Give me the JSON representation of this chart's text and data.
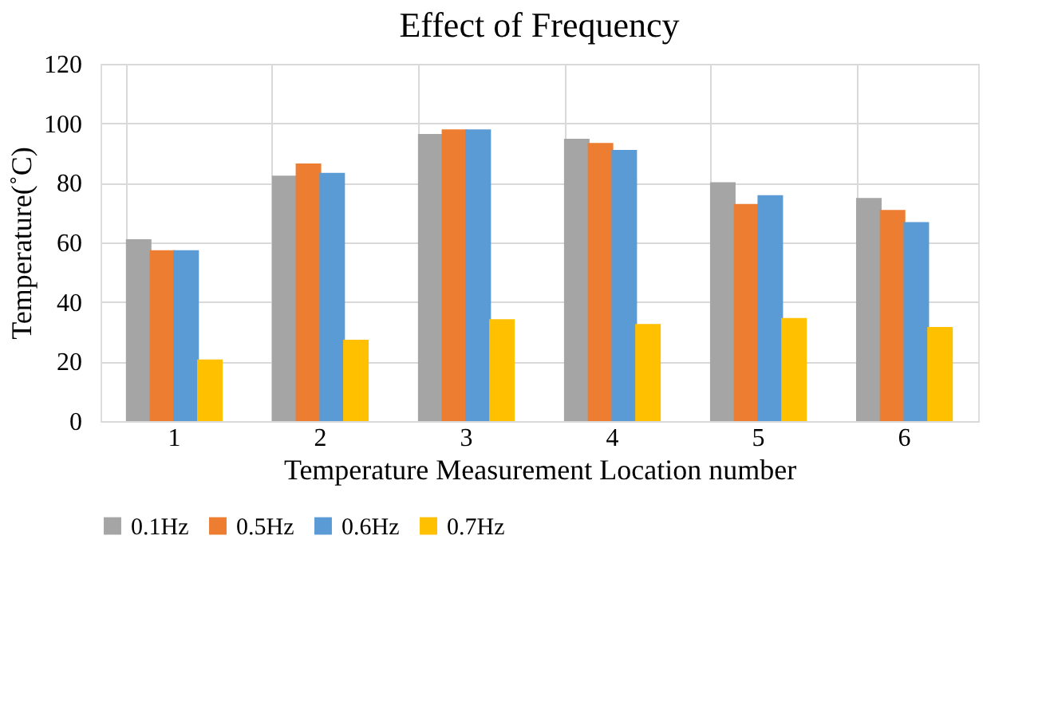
{
  "chart_data": {
    "type": "bar",
    "title": "Effect of Frequency",
    "xlabel": "Temperature Measurement Location number",
    "ylabel": "Temperature(˚C)",
    "categories": [
      "1",
      "2",
      "3",
      "4",
      "5",
      "6"
    ],
    "series": [
      {
        "name": "0.1Hz",
        "color": "#a5a5a5",
        "values": [
          61.1,
          82.4,
          96.4,
          94.8,
          80.2,
          74.9
        ]
      },
      {
        "name": "0.5Hz",
        "color": "#ed7d31",
        "values": [
          57.4,
          86.5,
          98,
          93.4,
          72.9,
          70.9
        ]
      },
      {
        "name": "0.6Hz",
        "color": "#5b9bd5",
        "values": [
          57.4,
          83.4,
          98,
          91.1,
          75.9,
          66.8
        ]
      },
      {
        "name": "0.7Hz",
        "color": "#ffc000",
        "values": [
          20.7,
          27.3,
          34.2,
          32.6,
          34.6,
          31.6
        ]
      }
    ],
    "ylim": [
      0,
      120
    ],
    "yticks": [
      0,
      20,
      40,
      60,
      80,
      100,
      120
    ],
    "grid": true,
    "legend": "bottom"
  }
}
